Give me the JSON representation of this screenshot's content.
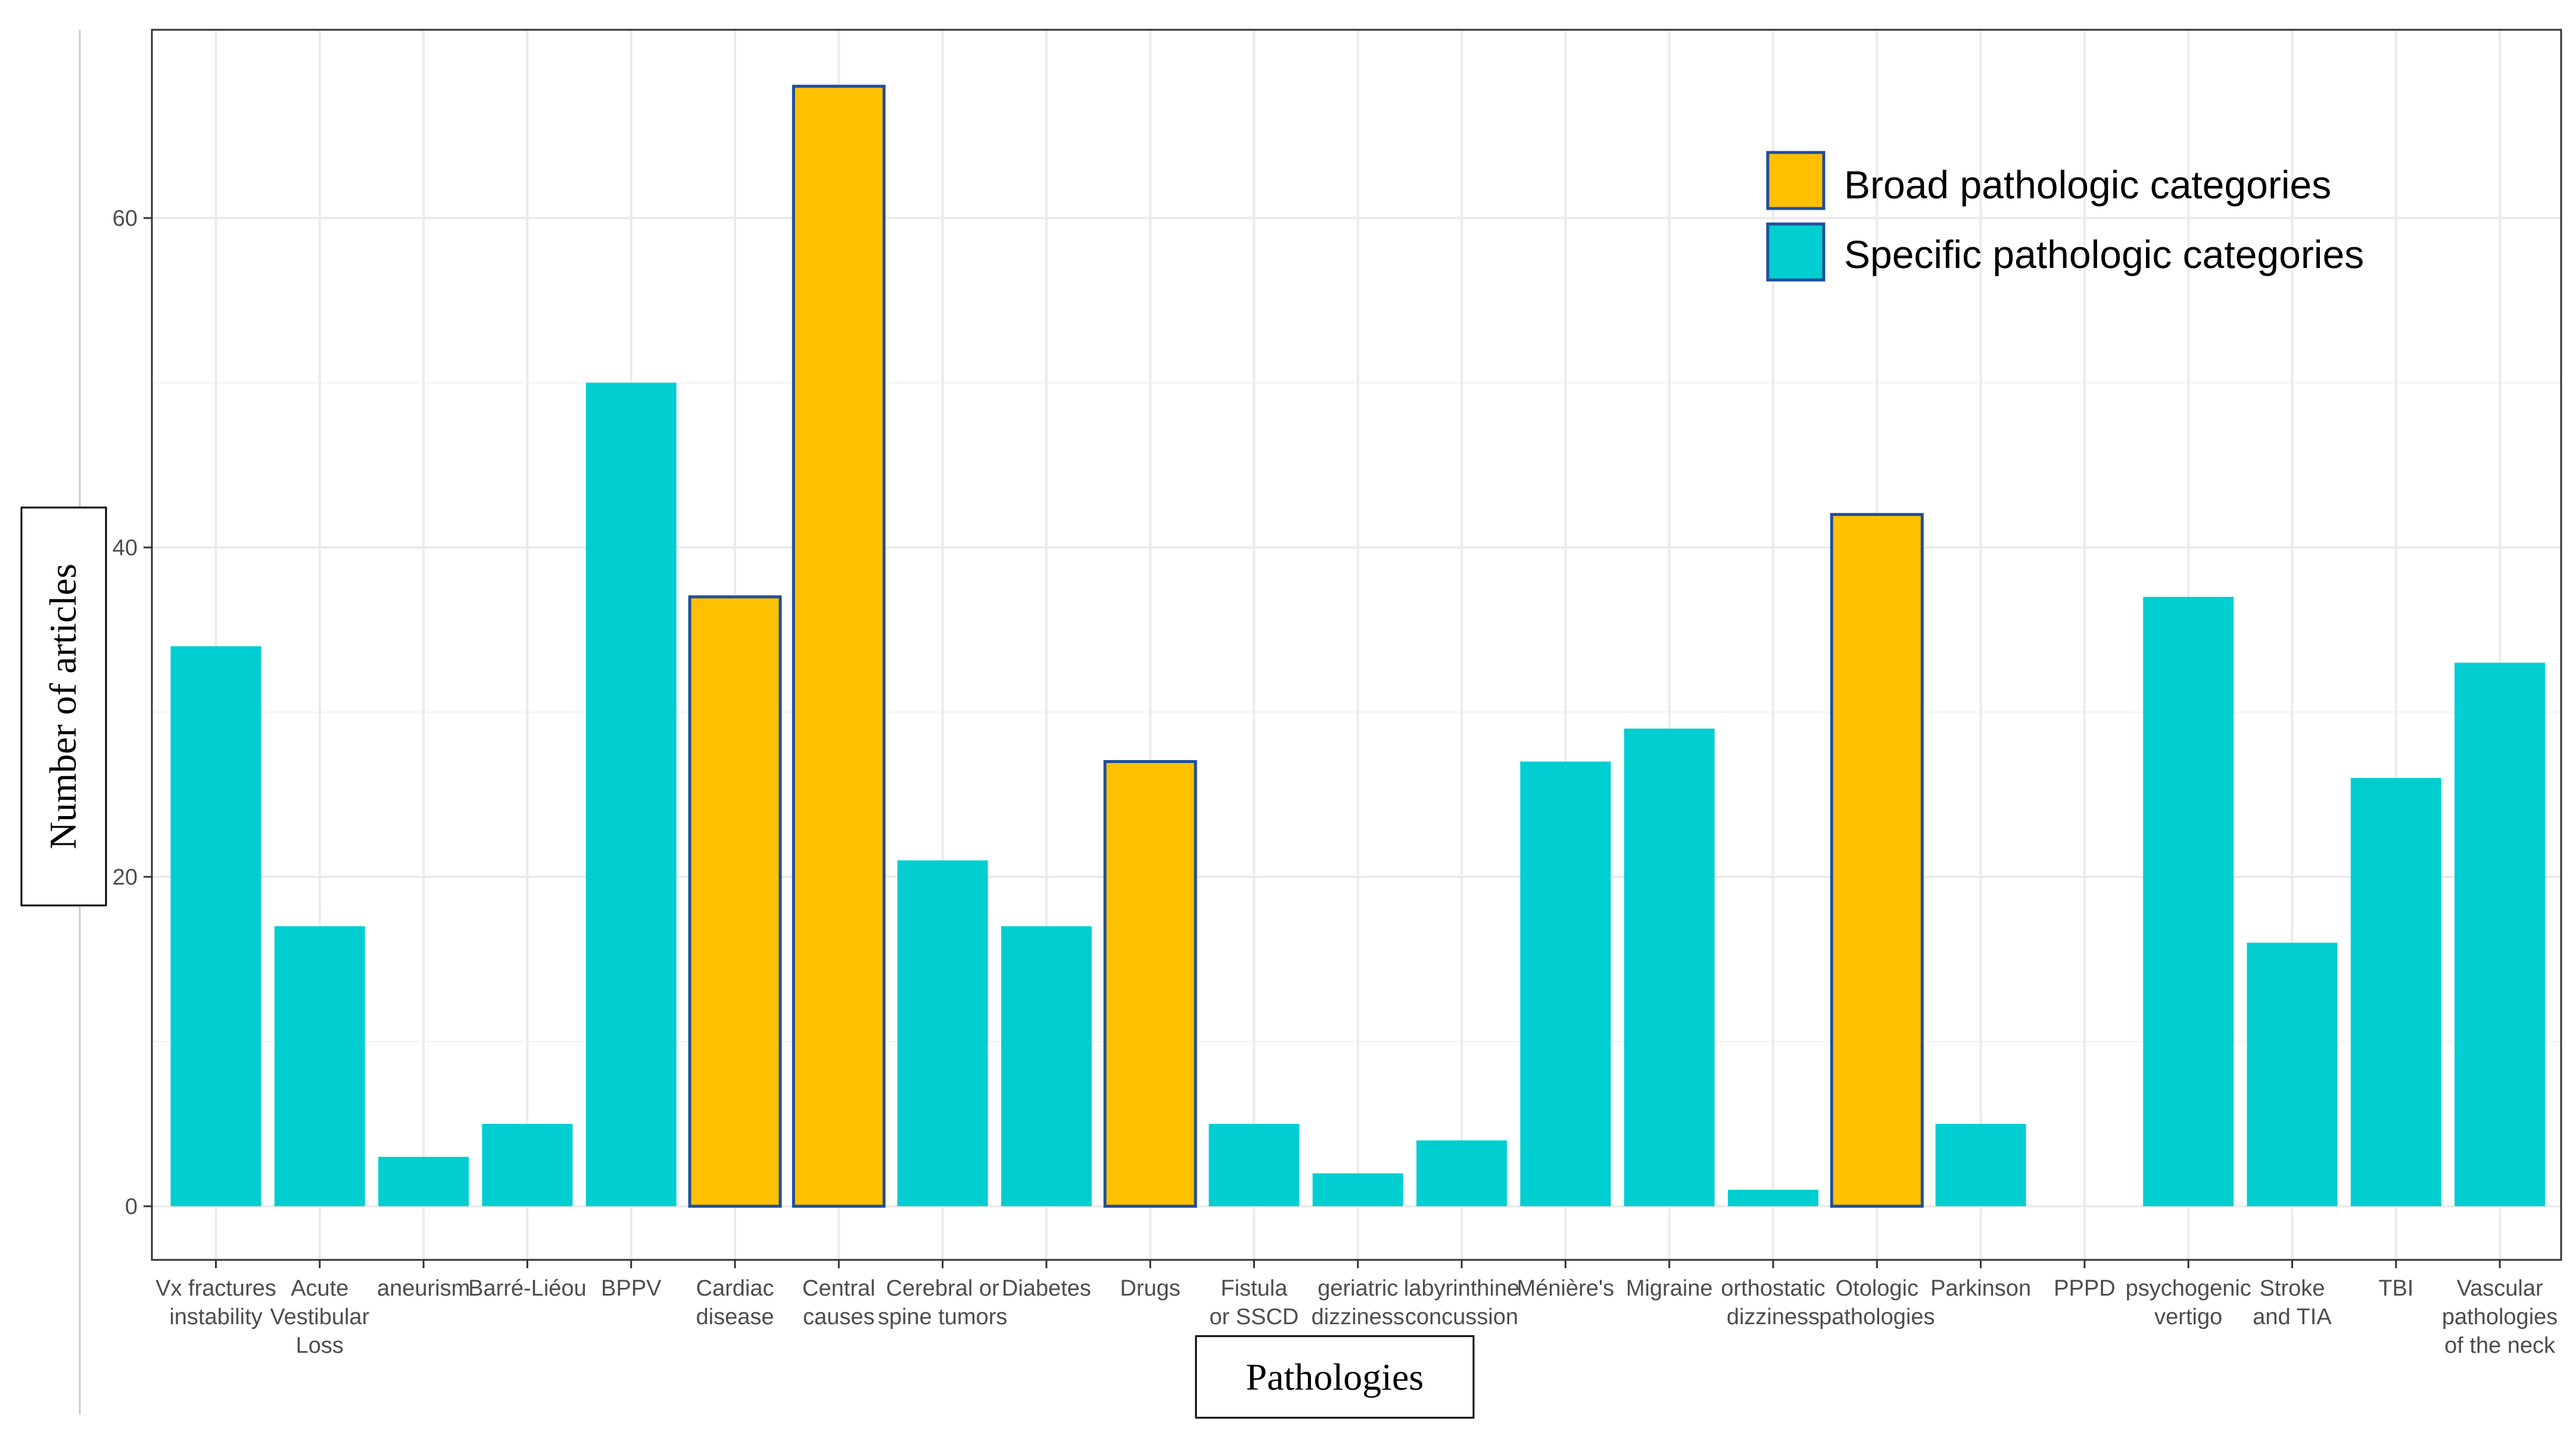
{
  "chart_data": {
    "type": "bar",
    "title": "",
    "xlabel": "Pathologies",
    "ylabel": "Number of articles",
    "ylim": [
      -3.5,
      71
    ],
    "yticks": [
      0,
      20,
      40,
      60
    ],
    "grid": true,
    "legend_position": "top-right",
    "legend": [
      {
        "label": "Broad pathologic categories",
        "color": "#FFC000"
      },
      {
        "label": "Specific pathologic categories",
        "color": "#00CED1"
      }
    ],
    "categories": [
      {
        "lines": [
          "Vx fractures",
          "instability"
        ],
        "value": 34,
        "group": "specific"
      },
      {
        "lines": [
          "Acute",
          "Vestibular",
          "Loss"
        ],
        "value": 17,
        "group": "specific"
      },
      {
        "lines": [
          "aneurism"
        ],
        "value": 3,
        "group": "specific"
      },
      {
        "lines": [
          "Barré-Liéou"
        ],
        "value": 5,
        "group": "specific"
      },
      {
        "lines": [
          "BPPV"
        ],
        "value": 50,
        "group": "specific"
      },
      {
        "lines": [
          "Cardiac",
          "disease"
        ],
        "value": 37,
        "group": "broad"
      },
      {
        "lines": [
          "Central",
          "causes"
        ],
        "value": 68,
        "group": "broad"
      },
      {
        "lines": [
          "Cerebral or",
          "spine tumors"
        ],
        "value": 21,
        "group": "specific"
      },
      {
        "lines": [
          "Diabetes"
        ],
        "value": 17,
        "group": "specific"
      },
      {
        "lines": [
          "Drugs"
        ],
        "value": 27,
        "group": "broad"
      },
      {
        "lines": [
          "Fistula",
          "or SSCD"
        ],
        "value": 5,
        "group": "specific"
      },
      {
        "lines": [
          "geriatric",
          "dizziness"
        ],
        "value": 2,
        "group": "specific"
      },
      {
        "lines": [
          "labyrinthine",
          "concussion"
        ],
        "value": 4,
        "group": "specific"
      },
      {
        "lines": [
          "Ménière's"
        ],
        "value": 27,
        "group": "specific"
      },
      {
        "lines": [
          "Migraine"
        ],
        "value": 29,
        "group": "specific"
      },
      {
        "lines": [
          "orthostatic",
          "dizziness"
        ],
        "value": 1,
        "group": "specific"
      },
      {
        "lines": [
          "Otologic",
          "pathologies"
        ],
        "value": 42,
        "group": "broad"
      },
      {
        "lines": [
          "Parkinson"
        ],
        "value": 5,
        "group": "specific"
      },
      {
        "lines": [
          "PPPD"
        ],
        "value": 0,
        "group": "specific"
      },
      {
        "lines": [
          "psychogenic",
          "vertigo"
        ],
        "value": 37,
        "group": "specific"
      },
      {
        "lines": [
          "Stroke",
          "and TIA"
        ],
        "value": 16,
        "group": "specific"
      },
      {
        "lines": [
          "TBI"
        ],
        "value": 26,
        "group": "specific"
      },
      {
        "lines": [
          "Vascular",
          "pathologies",
          "of the neck"
        ],
        "value": 33,
        "group": "specific"
      }
    ]
  },
  "colors": {
    "broad_fill": "#FFC000",
    "specific_fill": "#00CED1",
    "broad_stroke": "#1F4E9C",
    "grid_major": "#EBEBEB",
    "grid_minor": "#F5F5F5",
    "panel_border": "#333333"
  }
}
